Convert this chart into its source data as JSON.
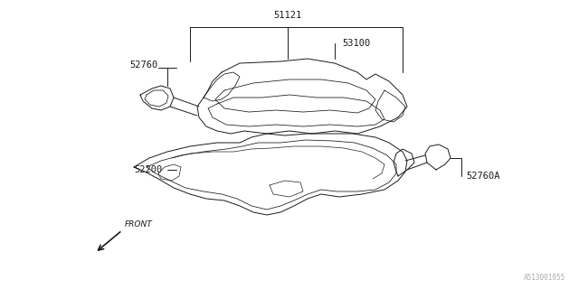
{
  "bg_color": "#ffffff",
  "line_color": "#1a1a1a",
  "label_color": "#1a1a1a",
  "watermark_color": "#aaaaaa",
  "watermark": "A513001055",
  "fig_width": 6.4,
  "fig_height": 3.2,
  "dpi": 100
}
